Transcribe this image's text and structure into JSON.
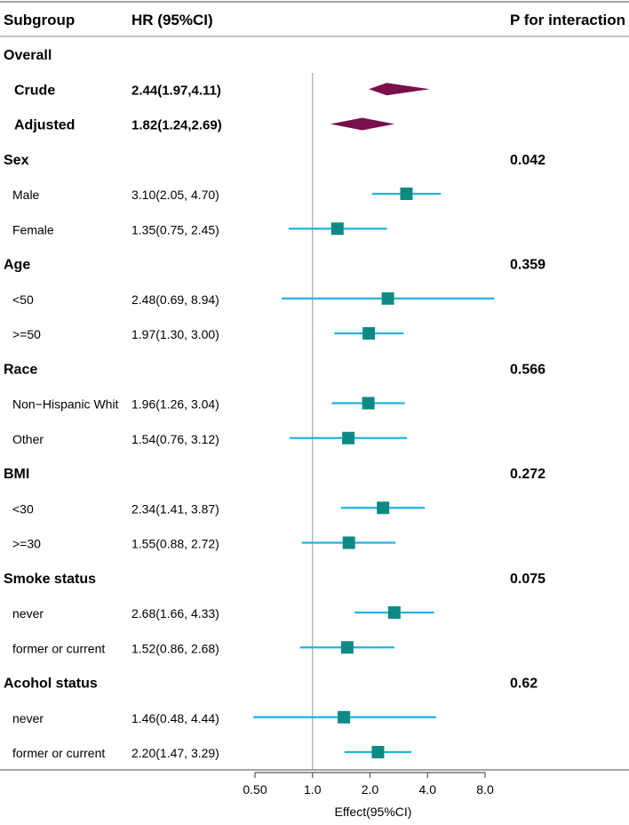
{
  "chart_data": {
    "type": "forest",
    "title": "",
    "columns": {
      "subgroup": "Subgroup",
      "hr": "HR (95%CI)",
      "p": "P for interaction"
    },
    "xlabel": "Effect(95%CI)",
    "x_scale": "log2",
    "xlim": [
      0.5,
      8.0
    ],
    "reference_line": 1.0,
    "x_ticks": [
      {
        "value": 0.5,
        "label": "0.50"
      },
      {
        "value": 1.0,
        "label": "1.0"
      },
      {
        "value": 2.0,
        "label": "2.0"
      },
      {
        "value": 4.0,
        "label": "4.0"
      },
      {
        "value": 8.0,
        "label": "8.0"
      }
    ],
    "colors": {
      "summary": "#7a0f4e",
      "point": "#0e8a84",
      "ci": "#1eb4e6",
      "reference": "#a8a8a8",
      "rule": "#888888"
    },
    "rows": [
      {
        "kind": "group",
        "label": "Overall"
      },
      {
        "kind": "summary",
        "label": "Crude",
        "hr_text": "2.44(1.97,4.11)",
        "est": 2.44,
        "lo": 1.97,
        "hi": 4.11
      },
      {
        "kind": "summary",
        "label": "Adjusted",
        "hr_text": "1.82(1.24,2.69)",
        "est": 1.82,
        "lo": 1.24,
        "hi": 2.69
      },
      {
        "kind": "group",
        "label": "Sex",
        "p": "0.042"
      },
      {
        "kind": "item",
        "label": "Male",
        "hr_text": "3.10(2.05, 4.70)",
        "est": 3.1,
        "lo": 2.05,
        "hi": 4.7
      },
      {
        "kind": "item",
        "label": "Female",
        "hr_text": "1.35(0.75, 2.45)",
        "est": 1.35,
        "lo": 0.75,
        "hi": 2.45
      },
      {
        "kind": "group",
        "label": "Age",
        "p": "0.359"
      },
      {
        "kind": "item",
        "label": "<50",
        "hr_text": "2.48(0.69, 8.94)",
        "est": 2.48,
        "lo": 0.69,
        "hi": 8.94
      },
      {
        "kind": "item",
        "label": ">=50",
        "hr_text": "1.97(1.30, 3.00)",
        "est": 1.97,
        "lo": 1.3,
        "hi": 3.0
      },
      {
        "kind": "group",
        "label": "Race",
        "p": "0.566"
      },
      {
        "kind": "item",
        "label": "Non−Hispanic Whit",
        "hr_text": "1.96(1.26, 3.04)",
        "est": 1.96,
        "lo": 1.26,
        "hi": 3.04
      },
      {
        "kind": "item",
        "label": "Other",
        "hr_text": "1.54(0.76, 3.12)",
        "est": 1.54,
        "lo": 0.76,
        "hi": 3.12
      },
      {
        "kind": "group",
        "label": "BMI",
        "p": "0.272"
      },
      {
        "kind": "item",
        "label": "<30",
        "hr_text": "2.34(1.41, 3.87)",
        "est": 2.34,
        "lo": 1.41,
        "hi": 3.87
      },
      {
        "kind": "item",
        "label": ">=30",
        "hr_text": "1.55(0.88, 2.72)",
        "est": 1.55,
        "lo": 0.88,
        "hi": 2.72
      },
      {
        "kind": "group",
        "label": "Smoke status",
        "p": "0.075"
      },
      {
        "kind": "item",
        "label": "never",
        "hr_text": "2.68(1.66, 4.33)",
        "est": 2.68,
        "lo": 1.66,
        "hi": 4.33
      },
      {
        "kind": "item",
        "label": "former or current",
        "hr_text": "1.52(0.86, 2.68)",
        "est": 1.52,
        "lo": 0.86,
        "hi": 2.68
      },
      {
        "kind": "group",
        "label": "Acohol status",
        "p": "0.62"
      },
      {
        "kind": "item",
        "label": "never",
        "hr_text": "1.46(0.48, 4.44)",
        "est": 1.46,
        "lo": 0.48,
        "hi": 4.44
      },
      {
        "kind": "item",
        "label": "former or current",
        "hr_text": "2.20(1.47, 3.29)",
        "est": 2.2,
        "lo": 1.47,
        "hi": 3.29
      }
    ]
  }
}
